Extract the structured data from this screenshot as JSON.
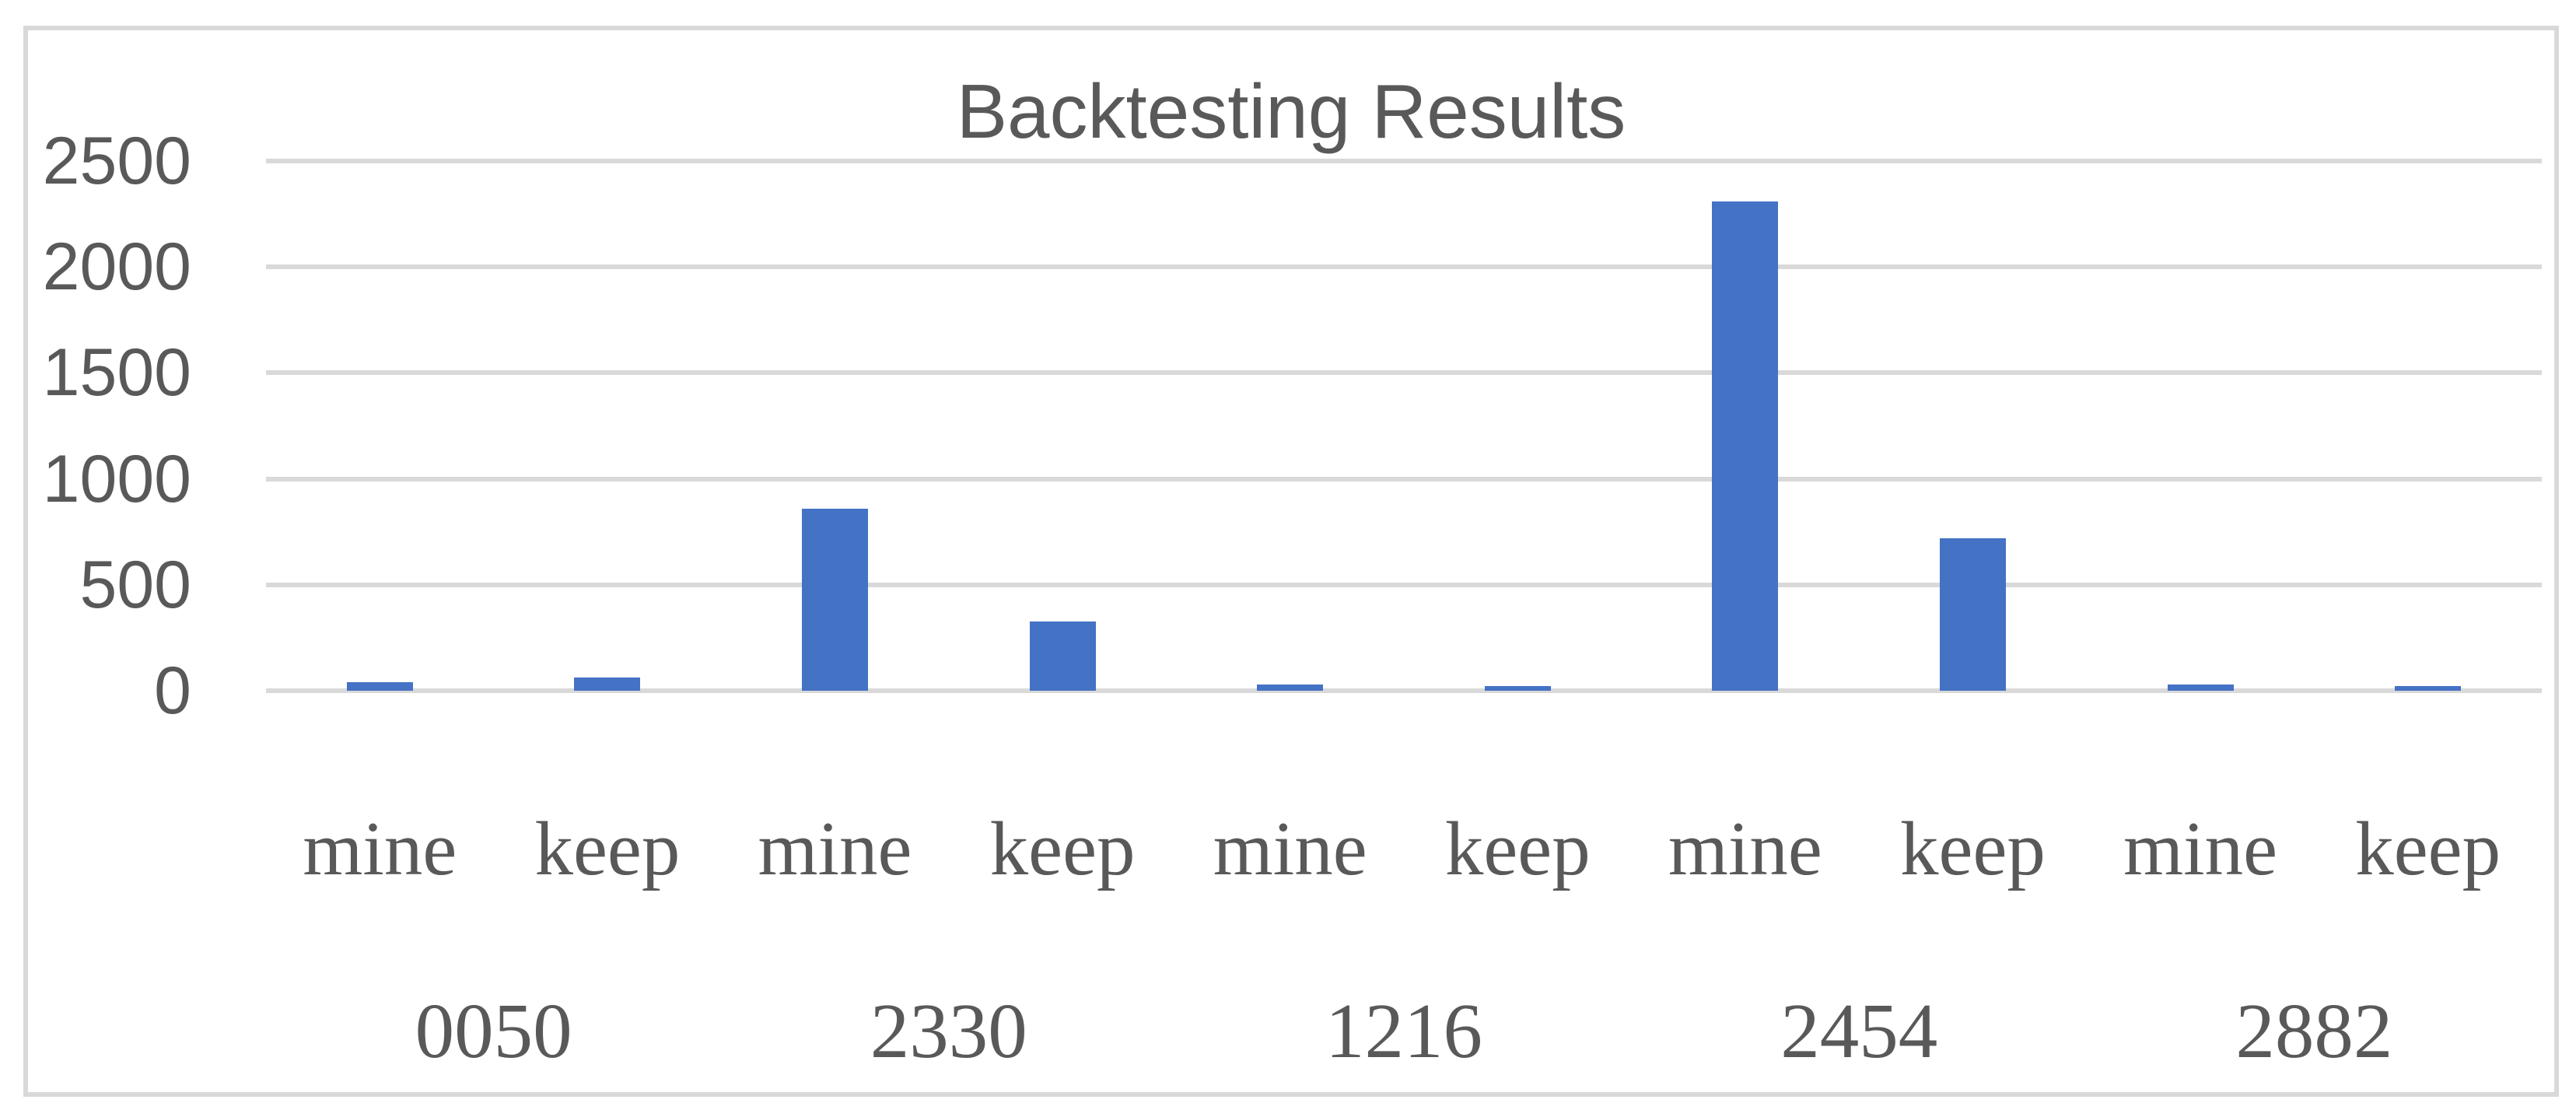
{
  "chart_data": {
    "type": "bar",
    "title": "Backtesting Results",
    "categories": [
      "0050",
      "2330",
      "1216",
      "2454",
      "2882"
    ],
    "series_labels": [
      "mine",
      "keep"
    ],
    "groups": [
      {
        "label": "0050",
        "bars": [
          {
            "label": "mine",
            "value": 40
          },
          {
            "label": "keep",
            "value": 62
          }
        ]
      },
      {
        "label": "2330",
        "bars": [
          {
            "label": "mine",
            "value": 860
          },
          {
            "label": "keep",
            "value": 325
          }
        ]
      },
      {
        "label": "1216",
        "bars": [
          {
            "label": "mine",
            "value": 30
          },
          {
            "label": "keep",
            "value": 22
          }
        ]
      },
      {
        "label": "2454",
        "bars": [
          {
            "label": "mine",
            "value": 2310
          },
          {
            "label": "keep",
            "value": 720
          }
        ]
      },
      {
        "label": "2882",
        "bars": [
          {
            "label": "mine",
            "value": 30
          },
          {
            "label": "keep",
            "value": 22
          }
        ]
      }
    ],
    "xlabel": "",
    "ylabel": "",
    "ylim": [
      0,
      2500
    ],
    "yticks": [
      0,
      500,
      1000,
      1500,
      2000,
      2500
    ],
    "grid": "horizontal",
    "legend": "none",
    "colors": {
      "bar": "#4472C4",
      "gridline": "#D9D9D9",
      "border": "#D9D9D9",
      "text": "#595959"
    }
  }
}
